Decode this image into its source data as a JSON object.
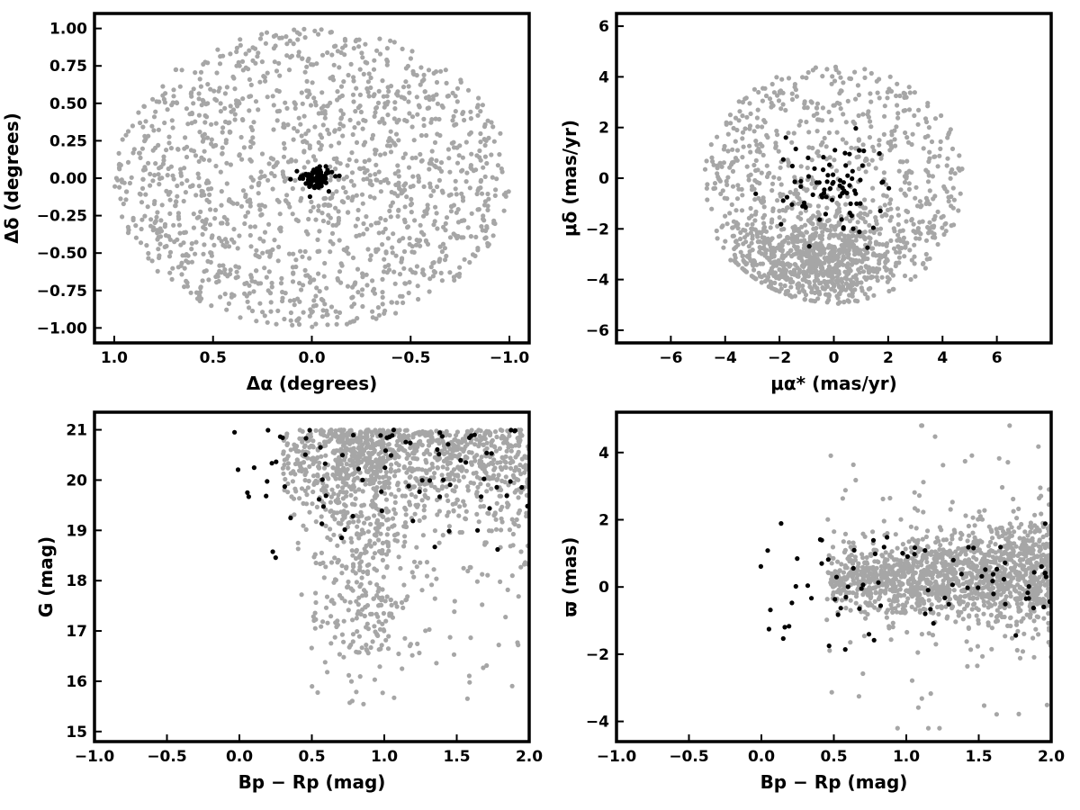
{
  "colors": {
    "field": "#a6a6a6",
    "members": "#000000",
    "axes": "#000000",
    "background": "#ffffff"
  },
  "chart_data": [
    {
      "id": "sky",
      "type": "scatter",
      "xlabel": "Δα (degrees)",
      "ylabel": "Δδ (degrees)",
      "xlim": [
        1.1,
        -1.1
      ],
      "ylim": [
        -1.1,
        1.1
      ],
      "x_inverted": true,
      "xticks": [
        1.0,
        0.5,
        0.0,
        -0.5,
        -1.0
      ],
      "xtick_labels": [
        "1.0",
        "0.5",
        "0.0",
        "−0.5",
        "−1.0"
      ],
      "yticks": [
        -1.0,
        -0.75,
        -0.5,
        -0.25,
        0.0,
        0.25,
        0.5,
        0.75,
        1.0
      ],
      "ytick_labels": [
        "−1.00",
        "−0.75",
        "−0.50",
        "−0.25",
        "0.00",
        "0.25",
        "0.50",
        "0.75",
        "1.00"
      ],
      "grid": false,
      "series": [
        {
          "role": "field",
          "distribution": "uniform disk, center (0,0), radius ≈1.0 deg",
          "n_points": 1500,
          "seed": 11
        },
        {
          "role": "members",
          "distribution": "compact clump centered near (0.0, 0.0), spread ≈0.04 deg",
          "n_points": 80,
          "seed": 12
        }
      ]
    },
    {
      "id": "pm",
      "type": "scatter",
      "xlabel": "μα* (mas/yr)",
      "ylabel": "μδ (mas/yr)",
      "xlim": [
        -8,
        8
      ],
      "ylim": [
        -6.5,
        6.5
      ],
      "xticks": [
        -6,
        -4,
        -2,
        0,
        2,
        4,
        6
      ],
      "xtick_labels": [
        "−6",
        "−4",
        "−2",
        "0",
        "2",
        "4",
        "6"
      ],
      "yticks": [
        -6,
        -4,
        -2,
        0,
        2,
        4,
        6
      ],
      "ytick_labels": [
        "−6",
        "−4",
        "−2",
        "0",
        "2",
        "4",
        "6"
      ],
      "grid": false,
      "series": [
        {
          "role": "field",
          "distribution": "points within radius ≈5 mas/yr of (0,0), dense concentration near (-0.5, -3.2)",
          "n_points": 1500,
          "seed": 21
        },
        {
          "role": "members",
          "distribution": "clump centered near (-0.2, -0.3), spread ≈1.0 mas/yr",
          "n_points": 80,
          "seed": 22
        }
      ]
    },
    {
      "id": "cmd",
      "type": "scatter",
      "xlabel": "Bp − Rp (mag)",
      "ylabel": "G (mag)",
      "xlim": [
        -1.0,
        2.0
      ],
      "ylim": [
        14.8,
        21.35
      ],
      "xticks": [
        -1.0,
        -0.5,
        0.0,
        0.5,
        1.0,
        1.5,
        2.0
      ],
      "xtick_labels": [
        "−1.0",
        "−0.5",
        "0.0",
        "0.5",
        "1.0",
        "1.5",
        "2.0"
      ],
      "yticks": [
        15,
        16,
        17,
        18,
        19,
        20,
        21
      ],
      "ytick_labels": [
        "15",
        "16",
        "17",
        "18",
        "19",
        "20",
        "21"
      ],
      "grid": false,
      "series": [
        {
          "role": "field",
          "distribution": "color 0.2–2.0, G 19–21 dense, sequence near color ≈0.9 extending to G ≈15",
          "n_points": 1500,
          "seed": 31
        },
        {
          "role": "members",
          "distribution": "color -0.05–2.0, G 18.3–21",
          "n_points": 80,
          "seed": 32
        }
      ]
    },
    {
      "id": "plx",
      "type": "scatter",
      "xlabel": "Bp − Rp (mag)",
      "ylabel": "ϖ (mas)",
      "xlim": [
        -1.0,
        2.0
      ],
      "ylim": [
        -4.6,
        5.2
      ],
      "xticks": [
        -1.0,
        -0.5,
        0.0,
        0.5,
        1.0,
        1.5,
        2.0
      ],
      "xtick_labels": [
        "−1.0",
        "−0.5",
        "0.0",
        "0.5",
        "1.0",
        "1.5",
        "2.0"
      ],
      "yticks": [
        -4,
        -2,
        0,
        2,
        4
      ],
      "ytick_labels": [
        "−4",
        "−2",
        "0",
        "2",
        "4"
      ],
      "grid": false,
      "series": [
        {
          "role": "field",
          "distribution": "color 0.4–2.0, parallax centered ≈0.2 with spread widening toward red, range -4 to 4.8",
          "n_points": 1500,
          "seed": 41
        },
        {
          "role": "members",
          "distribution": "color -0.05–2.0, parallax -2.8 to 2.6",
          "n_points": 80,
          "seed": 42
        }
      ]
    }
  ]
}
